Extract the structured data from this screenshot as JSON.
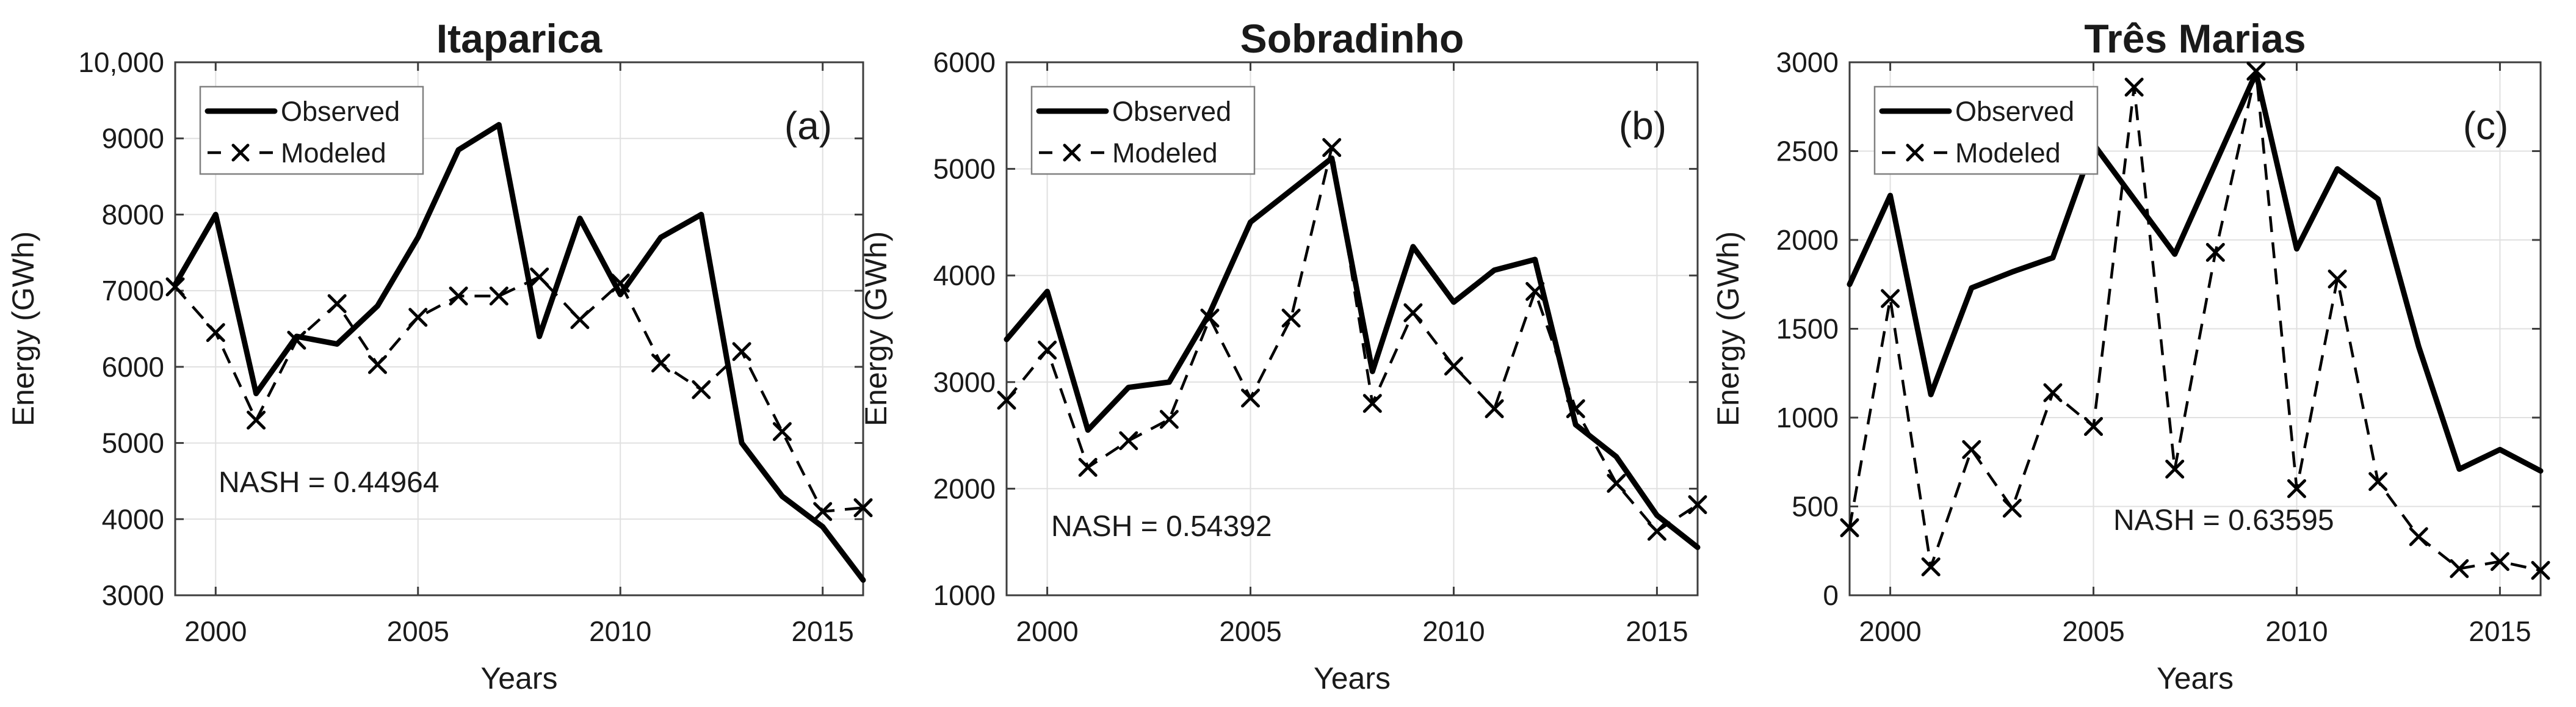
{
  "figure": {
    "xlabel": "Years",
    "ylabel": "Energy (GWh)",
    "legend_entries": [
      "Observed",
      "Modeled"
    ],
    "colors": {
      "line": "#000000",
      "grid": "#e0e0e0",
      "axis": "#3d3d3d",
      "text": "#1a1a1a",
      "legend_border": "#808080",
      "background": "#ffffff"
    }
  },
  "chart_data": [
    {
      "type": "line",
      "title": "Itaparica",
      "panel_label": "(a)",
      "annotation": "NASH = 0.44964",
      "xlabel": "Years",
      "ylabel": "Energy (GWh)",
      "grid": true,
      "legend_position": "top-left",
      "x": [
        1999,
        2000,
        2001,
        2002,
        2003,
        2004,
        2005,
        2006,
        2007,
        2008,
        2009,
        2010,
        2011,
        2012,
        2013,
        2014,
        2015,
        2016
      ],
      "xlim": [
        1999,
        2016
      ],
      "ylim": [
        3000,
        10000
      ],
      "xtick_values": [
        2000,
        2005,
        2010,
        2015
      ],
      "xtick_labels": [
        "2000",
        "2005",
        "2010",
        "2015"
      ],
      "ytick_values": [
        3000,
        4000,
        5000,
        6000,
        7000,
        8000,
        9000,
        10000
      ],
      "ytick_labels": [
        "3000",
        "4000",
        "5000",
        "6000",
        "7000",
        "8000",
        "9000",
        "10,000"
      ],
      "series": [
        {
          "name": "Observed",
          "line": "solid",
          "marker": "none",
          "values": [
            7080,
            8000,
            5650,
            6400,
            6300,
            6800,
            7700,
            8850,
            9180,
            6400,
            7950,
            6950,
            7700,
            8000,
            5000,
            4300,
            3900,
            3200
          ]
        },
        {
          "name": "Modeled",
          "line": "dashed",
          "marker": "x",
          "values": [
            7050,
            6450,
            5300,
            6350,
            6830,
            6030,
            6650,
            6930,
            6930,
            7180,
            6620,
            7100,
            6050,
            5700,
            6200,
            5150,
            4100,
            4150
          ]
        }
      ]
    },
    {
      "type": "line",
      "title": "Sobradinho",
      "panel_label": "(b)",
      "annotation": "NASH = 0.54392",
      "xlabel": "Years",
      "ylabel": "Energy (GWh)",
      "grid": true,
      "legend_position": "top-left",
      "x": [
        1999,
        2000,
        2001,
        2002,
        2003,
        2004,
        2005,
        2006,
        2007,
        2008,
        2009,
        2010,
        2011,
        2012,
        2013,
        2014,
        2015,
        2016
      ],
      "xlim": [
        1999,
        2016
      ],
      "ylim": [
        1000,
        6000
      ],
      "xtick_values": [
        2000,
        2005,
        2010,
        2015
      ],
      "xtick_labels": [
        "2000",
        "2005",
        "2010",
        "2015"
      ],
      "ytick_values": [
        1000,
        2000,
        3000,
        4000,
        5000,
        6000
      ],
      "ytick_labels": [
        "1000",
        "2000",
        "3000",
        "4000",
        "5000",
        "6000"
      ],
      "series": [
        {
          "name": "Observed",
          "line": "solid",
          "marker": "none",
          "values": [
            3400,
            3850,
            2550,
            2950,
            3000,
            3650,
            4500,
            4800,
            5100,
            3100,
            4270,
            3750,
            4050,
            4150,
            2600,
            2300,
            1750,
            1450
          ]
        },
        {
          "name": "Modeled",
          "line": "dashed",
          "marker": "x",
          "values": [
            2830,
            3300,
            2200,
            2450,
            2650,
            3600,
            2850,
            3600,
            5200,
            2800,
            3650,
            3150,
            2750,
            3850,
            2750,
            2050,
            1600,
            1850
          ]
        }
      ]
    },
    {
      "type": "line",
      "title": "Três Marias",
      "panel_label": "(c)",
      "annotation": "NASH = 0.63595",
      "xlabel": "Years",
      "ylabel": "Energy (GWh)",
      "grid": true,
      "legend_position": "top-left",
      "x": [
        1999,
        2000,
        2001,
        2002,
        2003,
        2004,
        2005,
        2006,
        2007,
        2008,
        2009,
        2010,
        2011,
        2012,
        2013,
        2014,
        2015,
        2016
      ],
      "xlim": [
        1999,
        2016
      ],
      "ylim": [
        0,
        3000
      ],
      "xtick_values": [
        2000,
        2005,
        2010,
        2015
      ],
      "xtick_labels": [
        "2000",
        "2005",
        "2010",
        "2015"
      ],
      "ytick_values": [
        0,
        500,
        1000,
        1500,
        2000,
        2500,
        3000
      ],
      "ytick_labels": [
        "0",
        "500",
        "1000",
        "1500",
        "2000",
        "2500",
        "3000"
      ],
      "series": [
        {
          "name": "Observed",
          "line": "solid",
          "marker": "none",
          "values": [
            1750,
            2250,
            1130,
            1730,
            1820,
            1900,
            2540,
            2230,
            1920,
            2430,
            2940,
            1950,
            2400,
            2230,
            1400,
            710,
            820,
            700
          ]
        },
        {
          "name": "Modeled",
          "line": "dashed",
          "marker": "x",
          "values": [
            380,
            1670,
            160,
            820,
            490,
            1140,
            950,
            2860,
            710,
            1930,
            2950,
            600,
            1780,
            640,
            330,
            150,
            190,
            140
          ]
        }
      ]
    }
  ]
}
